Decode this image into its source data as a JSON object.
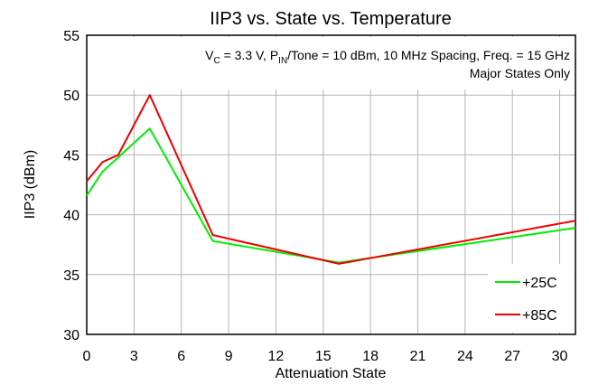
{
  "chart_data": {
    "type": "line",
    "title": "IIP3 vs. State vs. Temperature",
    "xlabel": "Attenuation State",
    "ylabel": "IIP3 (dBm)",
    "xlim": [
      0,
      31
    ],
    "ylim": [
      30,
      55
    ],
    "x_ticks": [
      "0",
      "3",
      "6",
      "9",
      "12",
      "15",
      "18",
      "21",
      "24",
      "27",
      "30"
    ],
    "y_ticks": [
      "30",
      "35",
      "40",
      "45",
      "50",
      "55"
    ],
    "grid": true,
    "annotation": {
      "vc_prefix": "V",
      "vc_sub": "C",
      "vc_value": " = 3.3 V, P",
      "pin_sub": "IN",
      "rest": "/Tone = 10 dBm, 10 MHz Spacing, Freq. = 15 GHz",
      "line2": "Major States Only"
    },
    "legend_position": "bottom-right",
    "series": [
      {
        "name": "+25C",
        "color": "#00ee00",
        "x": [
          0,
          1,
          2,
          4,
          8,
          16,
          31
        ],
        "y": [
          41.6,
          43.6,
          44.8,
          47.2,
          37.8,
          36.0,
          38.9
        ]
      },
      {
        "name": "+85C",
        "color": "#ee0000",
        "x": [
          0,
          1,
          2,
          4,
          8,
          16,
          31
        ],
        "y": [
          42.8,
          44.4,
          45.0,
          50.0,
          38.3,
          35.9,
          39.5
        ]
      }
    ]
  }
}
